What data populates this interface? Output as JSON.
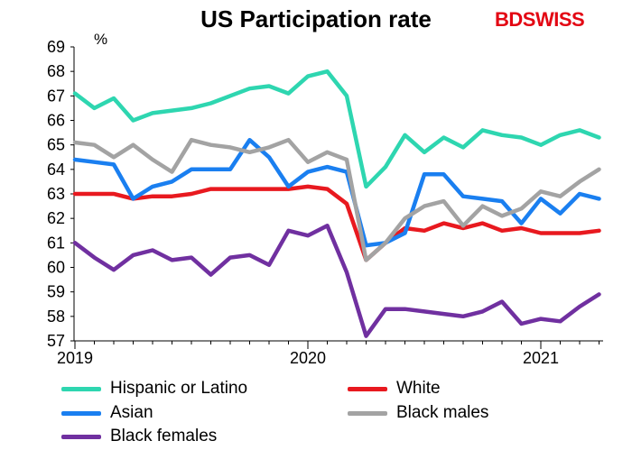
{
  "chart_data": {
    "type": "line",
    "title": "US Participation rate",
    "ylabel": "%",
    "xlabel": "",
    "ylim": [
      57,
      69
    ],
    "yticks": [
      57,
      58,
      59,
      60,
      61,
      62,
      63,
      64,
      65,
      66,
      67,
      68,
      69
    ],
    "xticks": [
      {
        "label": "2019",
        "month_index": 0
      },
      {
        "label": "2020",
        "month_index": 12
      },
      {
        "label": "2021",
        "month_index": 24
      }
    ],
    "x_months": [
      "2019-01",
      "2019-02",
      "2019-03",
      "2019-04",
      "2019-05",
      "2019-06",
      "2019-07",
      "2019-08",
      "2019-09",
      "2019-10",
      "2019-11",
      "2019-12",
      "2020-01",
      "2020-02",
      "2020-03",
      "2020-04",
      "2020-05",
      "2020-06",
      "2020-07",
      "2020-08",
      "2020-09",
      "2020-10",
      "2020-11",
      "2020-12",
      "2021-01",
      "2021-02",
      "2021-03",
      "2021-04"
    ],
    "grid": false,
    "legend_position": "bottom",
    "series": [
      {
        "name": "Hispanic or Latino",
        "color": "#2ed6b0",
        "values": [
          67.1,
          66.5,
          66.9,
          66.0,
          66.3,
          66.4,
          66.5,
          66.7,
          67.0,
          67.3,
          67.4,
          67.1,
          67.8,
          68.0,
          67.0,
          63.3,
          64.1,
          65.4,
          64.7,
          65.3,
          64.9,
          65.6,
          65.4,
          65.3,
          65.0,
          65.4,
          65.6,
          65.3
        ]
      },
      {
        "name": "White",
        "color": "#e8191f",
        "values": [
          63.0,
          63.0,
          63.0,
          62.8,
          62.9,
          62.9,
          63.0,
          63.2,
          63.2,
          63.2,
          63.2,
          63.2,
          63.3,
          63.2,
          62.6,
          60.3,
          61.0,
          61.6,
          61.5,
          61.8,
          61.6,
          61.8,
          61.5,
          61.6,
          61.4,
          61.4,
          61.4,
          61.5
        ]
      },
      {
        "name": "Asian",
        "color": "#1a7ff0",
        "values": [
          64.4,
          64.3,
          64.2,
          62.8,
          63.3,
          63.5,
          64.0,
          64.0,
          64.0,
          65.2,
          64.5,
          63.3,
          63.9,
          64.1,
          63.9,
          60.9,
          61.0,
          61.4,
          63.8,
          63.8,
          62.9,
          62.8,
          62.7,
          61.8,
          62.8,
          62.2,
          63.0,
          62.8
        ]
      },
      {
        "name": "Black males",
        "color": "#a3a3a3",
        "values": [
          65.1,
          65.0,
          64.5,
          65.0,
          64.4,
          63.9,
          65.2,
          65.0,
          64.9,
          64.7,
          64.9,
          65.2,
          64.3,
          64.7,
          64.4,
          60.3,
          61.0,
          62.0,
          62.5,
          62.7,
          61.7,
          62.5,
          62.1,
          62.4,
          63.1,
          62.9,
          63.5,
          64.0
        ]
      },
      {
        "name": "Black females",
        "color": "#7030a0",
        "values": [
          61.0,
          60.4,
          59.9,
          60.5,
          60.7,
          60.3,
          60.4,
          59.7,
          60.4,
          60.5,
          60.1,
          61.5,
          61.3,
          61.7,
          59.8,
          57.2,
          58.3,
          58.3,
          58.2,
          58.1,
          58.0,
          58.2,
          58.6,
          57.7,
          57.9,
          57.8,
          58.4,
          58.9
        ]
      }
    ]
  },
  "brand": {
    "logo_part1": "BD",
    "logo_part2": "SWISS",
    "color": "#e30613"
  }
}
